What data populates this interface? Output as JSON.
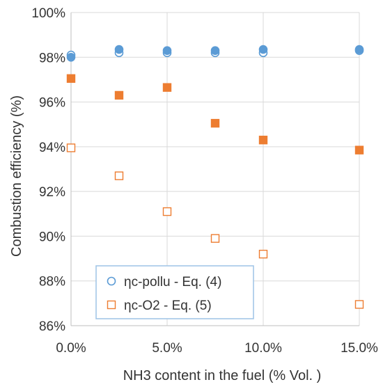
{
  "chart_data": {
    "type": "scatter",
    "title": "",
    "xlabel": "NH3 content in the fuel (% Vol. )",
    "ylabel": "Combustion efficiency (%)",
    "xlim": [
      0,
      15
    ],
    "ylim": [
      86,
      100
    ],
    "x_ticks": [
      0,
      5,
      10,
      15
    ],
    "x_tick_labels": [
      "0.0%",
      "5.0%",
      "10.0%",
      "15.0%"
    ],
    "y_ticks": [
      86,
      88,
      90,
      92,
      94,
      96,
      98,
      100
    ],
    "y_tick_labels": [
      "86%",
      "88%",
      "90%",
      "92%",
      "94%",
      "96%",
      "98%",
      "100%"
    ],
    "grid": true,
    "legend_position": "bottom-left",
    "series": [
      {
        "name": "ηc-pollu - Eq. (4)",
        "color": "#5b9bd5",
        "marker": "circle-open",
        "x": [
          0,
          2.5,
          5,
          7.5,
          10,
          15
        ],
        "y": [
          98.1,
          98.2,
          98.2,
          98.2,
          98.2,
          98.3
        ]
      },
      {
        "name": "",
        "color": "#5b9bd5",
        "marker": "circle-filled",
        "x": [
          0,
          2.5,
          5,
          7.5,
          10,
          15
        ],
        "y": [
          98.0,
          98.35,
          98.3,
          98.3,
          98.35,
          98.35
        ]
      },
      {
        "name": "ηc-O2 - Eq. (5)",
        "color": "#ed7d31",
        "marker": "square-open",
        "x": [
          0,
          2.5,
          5,
          7.5,
          10,
          15
        ],
        "y": [
          93.95,
          92.7,
          91.1,
          89.9,
          89.2,
          86.95
        ]
      },
      {
        "name": "",
        "color": "#ed7d31",
        "marker": "square-filled",
        "x": [
          0,
          2.5,
          5,
          7.5,
          10,
          15
        ],
        "y": [
          97.05,
          96.3,
          96.65,
          95.05,
          94.3,
          93.85
        ]
      }
    ],
    "legend": [
      {
        "label": "ηc-pollu - Eq. (4)",
        "marker": "circle-open",
        "color": "#5b9bd5"
      },
      {
        "label": "ηc-O2 - Eq. (5)",
        "marker": "square-open",
        "color": "#ed7d31"
      }
    ]
  }
}
